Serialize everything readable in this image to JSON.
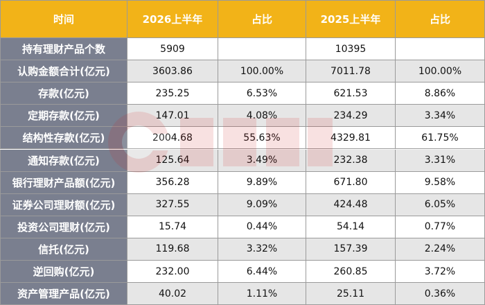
{
  "header": [
    "时间",
    "2026上半年",
    "占比",
    "2025上半年",
    "占比"
  ],
  "rows": [
    {
      "label": "持有理财产品个数",
      "v2026": "5909",
      "p2026": "",
      "v2025": "10395",
      "p2025": ""
    },
    {
      "label": "认购金额合计(亿元)",
      "v2026": "3603.86",
      "p2026": "100.00%",
      "v2025": "7011.78",
      "p2025": "100.00%"
    },
    {
      "label": "存款(亿元)",
      "v2026": "235.25",
      "p2026": "6.53%",
      "v2025": "621.53",
      "p2025": "8.86%"
    },
    {
      "label": "定期存款(亿元)",
      "v2026": "147.01",
      "p2026": "4.08%",
      "v2025": "234.29",
      "p2025": "3.34%"
    },
    {
      "label": "结构性存款(亿元)",
      "v2026": "2004.68",
      "p2026": "55.63%",
      "v2025": "4329.81",
      "p2025": "61.75%"
    },
    {
      "label": "通知存款(亿元)",
      "v2026": "125.64",
      "p2026": "3.49%",
      "v2025": "232.38",
      "p2025": "3.31%"
    },
    {
      "label": "银行理财产品额(亿元)",
      "v2026": "356.28",
      "p2026": "9.89%",
      "v2025": "671.80",
      "p2025": "9.58%"
    },
    {
      "label": "证券公司理财额(亿元)",
      "v2026": "327.55",
      "p2026": "9.09%",
      "v2025": "424.48",
      "p2025": "6.05%"
    },
    {
      "label": "投资公司理财(亿元)",
      "v2026": "15.74",
      "p2026": "0.44%",
      "v2025": "54.14",
      "p2025": "0.77%"
    },
    {
      "label": "信托(亿元)",
      "v2026": "119.68",
      "p2026": "3.32%",
      "v2025": "157.39",
      "p2025": "2.24%"
    },
    {
      "label": "逆回购(亿元)",
      "v2026": "232.00",
      "p2026": "6.44%",
      "v2025": "260.85",
      "p2025": "3.72%"
    },
    {
      "label": "资产管理产品(亿元)",
      "v2026": "40.02",
      "p2026": "1.11%",
      "v2025": "25.11",
      "p2025": "0.36%"
    }
  ],
  "colors": {
    "header_bg": "#f2b318",
    "label_bg": "#7a7f8f",
    "shade_bg": "#e6e6e6",
    "border": "#9a9a9a"
  },
  "watermark_icon": "cls-logo-watermark"
}
